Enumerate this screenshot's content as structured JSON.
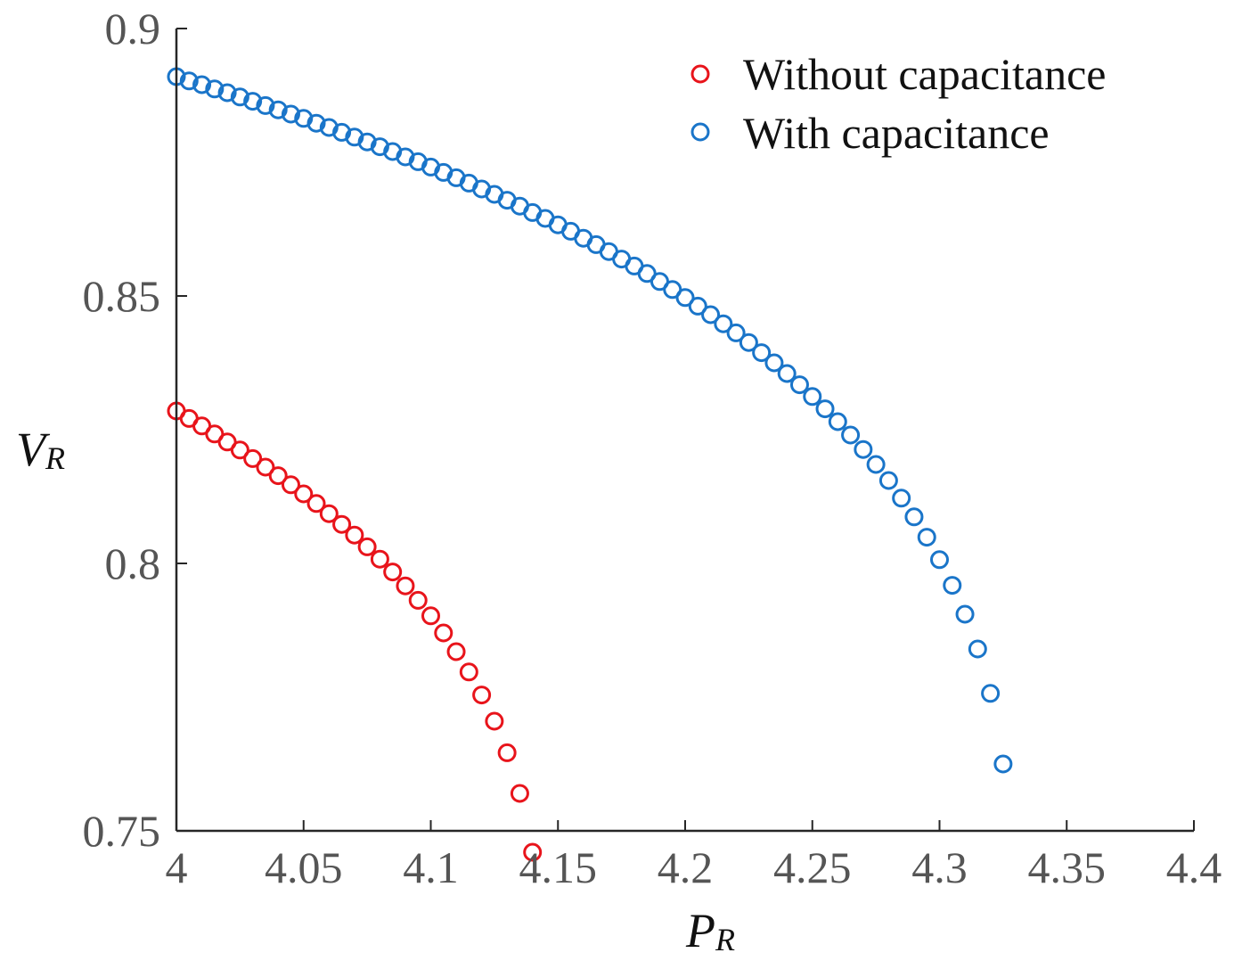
{
  "chart_data": {
    "type": "scatter",
    "title": "",
    "xlabel": "P",
    "xlabel_sub": "R",
    "ylabel": "V",
    "ylabel_sub": "R",
    "xlim": [
      4,
      4.4
    ],
    "ylim": [
      0.75,
      0.9
    ],
    "xticks": [
      "4",
      "4.05",
      "4.1",
      "4.15",
      "4.2",
      "4.25",
      "4.3",
      "4.35",
      "4.4"
    ],
    "yticks": [
      "0.75",
      "0.8",
      "0.85",
      "0.9"
    ],
    "grid": false,
    "legend_position": "top-right",
    "series": [
      {
        "name": "Without capacitance",
        "color": "#e8141b",
        "marker": "open-circle",
        "points": [
          [
            4.0,
            0.8285
          ],
          [
            4.005,
            0.8271
          ],
          [
            4.01,
            0.8257
          ],
          [
            4.015,
            0.8242
          ],
          [
            4.02,
            0.8227
          ],
          [
            4.025,
            0.8212
          ],
          [
            4.03,
            0.8196
          ],
          [
            4.035,
            0.818
          ],
          [
            4.04,
            0.8164
          ],
          [
            4.045,
            0.8147
          ],
          [
            4.05,
            0.813
          ],
          [
            4.055,
            0.8112
          ],
          [
            4.06,
            0.8093
          ],
          [
            4.065,
            0.8073
          ],
          [
            4.07,
            0.8053
          ],
          [
            4.075,
            0.8031
          ],
          [
            4.08,
            0.8008
          ],
          [
            4.085,
            0.7984
          ],
          [
            4.09,
            0.7958
          ],
          [
            4.095,
            0.7931
          ],
          [
            4.1,
            0.7902
          ],
          [
            4.105,
            0.787
          ],
          [
            4.11,
            0.7835
          ],
          [
            4.115,
            0.7797
          ],
          [
            4.12,
            0.7754
          ],
          [
            4.125,
            0.7705
          ],
          [
            4.13,
            0.7646
          ],
          [
            4.135,
            0.757
          ],
          [
            4.14,
            0.746
          ]
        ]
      },
      {
        "name": "With capacitance",
        "color": "#1a75c9",
        "marker": "open-circle",
        "points": [
          [
            4.0,
            0.891
          ],
          [
            4.005,
            0.8902
          ],
          [
            4.01,
            0.8895
          ],
          [
            4.015,
            0.8887
          ],
          [
            4.02,
            0.888
          ],
          [
            4.025,
            0.8872
          ],
          [
            4.03,
            0.8864
          ],
          [
            4.035,
            0.8856
          ],
          [
            4.04,
            0.8848
          ],
          [
            4.045,
            0.884
          ],
          [
            4.05,
            0.8832
          ],
          [
            4.055,
            0.8823
          ],
          [
            4.06,
            0.8815
          ],
          [
            4.065,
            0.8806
          ],
          [
            4.07,
            0.8797
          ],
          [
            4.075,
            0.8788
          ],
          [
            4.08,
            0.8779
          ],
          [
            4.085,
            0.877
          ],
          [
            4.09,
            0.876
          ],
          [
            4.095,
            0.8751
          ],
          [
            4.1,
            0.8741
          ],
          [
            4.105,
            0.8731
          ],
          [
            4.11,
            0.8721
          ],
          [
            4.115,
            0.8711
          ],
          [
            4.12,
            0.87
          ],
          [
            4.125,
            0.869
          ],
          [
            4.13,
            0.8679
          ],
          [
            4.135,
            0.8668
          ],
          [
            4.14,
            0.8656
          ],
          [
            4.145,
            0.8645
          ],
          [
            4.15,
            0.8633
          ],
          [
            4.155,
            0.8621
          ],
          [
            4.16,
            0.8608
          ],
          [
            4.165,
            0.8596
          ],
          [
            4.17,
            0.8583
          ],
          [
            4.175,
            0.8569
          ],
          [
            4.18,
            0.8556
          ],
          [
            4.185,
            0.8542
          ],
          [
            4.19,
            0.8527
          ],
          [
            4.195,
            0.8512
          ],
          [
            4.2,
            0.8497
          ],
          [
            4.205,
            0.8481
          ],
          [
            4.21,
            0.8465
          ],
          [
            4.215,
            0.8448
          ],
          [
            4.22,
            0.8431
          ],
          [
            4.225,
            0.8413
          ],
          [
            4.23,
            0.8394
          ],
          [
            4.235,
            0.8375
          ],
          [
            4.24,
            0.8355
          ],
          [
            4.245,
            0.8334
          ],
          [
            4.25,
            0.8312
          ],
          [
            4.255,
            0.8289
          ],
          [
            4.26,
            0.8265
          ],
          [
            4.265,
            0.824
          ],
          [
            4.27,
            0.8213
          ],
          [
            4.275,
            0.8185
          ],
          [
            4.28,
            0.8155
          ],
          [
            4.285,
            0.8122
          ],
          [
            4.29,
            0.8087
          ],
          [
            4.295,
            0.8049
          ],
          [
            4.3,
            0.8007
          ],
          [
            4.305,
            0.7959
          ],
          [
            4.31,
            0.7905
          ],
          [
            4.315,
            0.784
          ],
          [
            4.32,
            0.7757
          ],
          [
            4.325,
            0.7625
          ]
        ]
      }
    ]
  }
}
